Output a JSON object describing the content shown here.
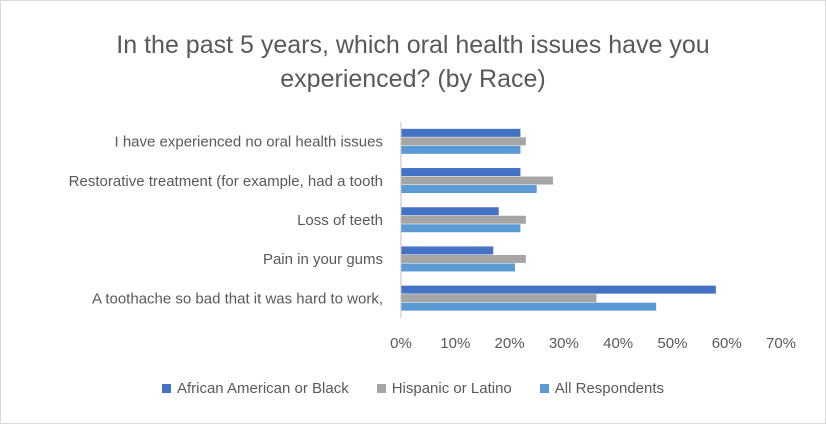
{
  "chart_data": {
    "type": "bar",
    "orientation": "horizontal",
    "title": "In the past 5 years, which oral health issues have you experienced? (by Race)",
    "categories": [
      "I have experienced no oral health issues",
      "Restorative treatment (for example, had a tooth",
      "Loss of teeth",
      "Pain in your gums",
      "A toothache so bad that it was hard to work,"
    ],
    "series": [
      {
        "name": "African American or Black",
        "color": "#4472c4",
        "values": [
          22,
          22,
          18,
          17,
          58
        ]
      },
      {
        "name": "Hispanic or Latino",
        "color": "#a5a5a5",
        "values": [
          23,
          28,
          23,
          23,
          36
        ]
      },
      {
        "name": "All Respondents",
        "color": "#5b9bd5",
        "values": [
          22,
          25,
          22,
          21,
          47
        ]
      }
    ],
    "xlim": [
      0,
      70
    ],
    "xticks": [
      "0%",
      "10%",
      "20%",
      "30%",
      "40%",
      "50%",
      "60%",
      "70%"
    ],
    "grid": false,
    "legend_position": "bottom"
  }
}
